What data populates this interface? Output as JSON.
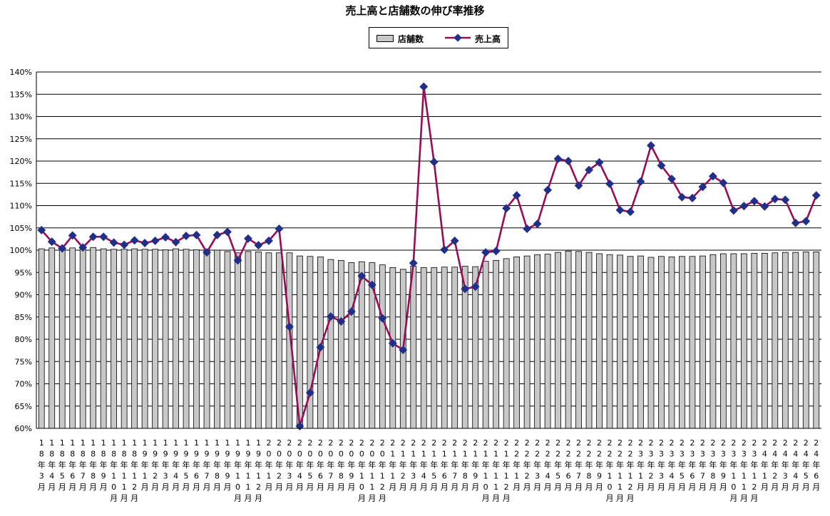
{
  "chart_data": {
    "type": "bar",
    "title": "売上高と店舗数の伸び率推移",
    "legend_position": "top-center",
    "grid": true,
    "ylim": [
      0.6,
      1.4
    ],
    "y_ticks": [
      "60%",
      "65%",
      "70%",
      "75%",
      "80%",
      "85%",
      "90%",
      "95%",
      "100%",
      "105%",
      "110%",
      "115%",
      "120%",
      "125%",
      "130%",
      "135%",
      "140%"
    ],
    "categories": [
      "18年3月",
      "18年4月",
      "18年5月",
      "18年6月",
      "18年7月",
      "18年8月",
      "18年9月",
      "18年10月",
      "18年11月",
      "18年12月",
      "19年1月",
      "19年2月",
      "19年3月",
      "19年4月",
      "19年5月",
      "19年6月",
      "19年7月",
      "19年8月",
      "19年9月",
      "19年10月",
      "19年11月",
      "19年12月",
      "20年1月",
      "20年2月",
      "20年3月",
      "20年4月",
      "20年5月",
      "20年6月",
      "20年7月",
      "20年8月",
      "20年9月",
      "20年10月",
      "20年11月",
      "20年12月",
      "21年1月",
      "21年2月",
      "21年3月",
      "21年4月",
      "21年5月",
      "21年6月",
      "21年7月",
      "21年8月",
      "21年9月",
      "21年10月",
      "21年11月",
      "21年12月",
      "22年1月",
      "22年2月",
      "22年3月",
      "22年4月",
      "22年5月",
      "22年6月",
      "22年7月",
      "22年8月",
      "22年9月",
      "22年10月",
      "22年11月",
      "22年12月",
      "23年1月",
      "23年2月",
      "23年3月",
      "23年4月",
      "23年5月",
      "23年6月",
      "23年7月",
      "23年8月",
      "23年9月",
      "23年10月",
      "23年11月",
      "23年12月",
      "24年1月",
      "24年2月",
      "24年3月",
      "24年4月",
      "24年5月",
      "24年6月"
    ],
    "x_tick_labels": [
      [
        "1",
        "8",
        "年",
        "3",
        "月"
      ],
      [
        "1",
        "8",
        "年",
        "4",
        "月"
      ],
      [
        "1",
        "8",
        "年",
        "5",
        "月"
      ],
      [
        "1",
        "8",
        "年",
        "6",
        "月"
      ],
      [
        "1",
        "8",
        "年",
        "7",
        "月"
      ],
      [
        "1",
        "8",
        "年",
        "8",
        "月"
      ],
      [
        "1",
        "8",
        "年",
        "9",
        "月"
      ],
      [
        "1",
        "8",
        "年",
        "1",
        "0",
        "月"
      ],
      [
        "1",
        "8",
        "年",
        "1",
        "1",
        "月"
      ],
      [
        "1",
        "8",
        "年",
        "1",
        "2",
        "月"
      ],
      [
        "1",
        "9",
        "年",
        "1",
        "月"
      ],
      [
        "1",
        "9",
        "年",
        "2",
        "月"
      ],
      [
        "1",
        "9",
        "年",
        "3",
        "月"
      ],
      [
        "1",
        "9",
        "年",
        "4",
        "月"
      ],
      [
        "1",
        "9",
        "年",
        "5",
        "月"
      ],
      [
        "1",
        "9",
        "年",
        "6",
        "月"
      ],
      [
        "1",
        "9",
        "年",
        "7",
        "月"
      ],
      [
        "1",
        "9",
        "年",
        "8",
        "月"
      ],
      [
        "1",
        "9",
        "年",
        "9",
        "月"
      ],
      [
        "1",
        "9",
        "年",
        "1",
        "0",
        "月"
      ],
      [
        "1",
        "9",
        "年",
        "1",
        "1",
        "月"
      ],
      [
        "1",
        "9",
        "年",
        "1",
        "2",
        "月"
      ],
      [
        "2",
        "0",
        "年",
        "1",
        "月"
      ],
      [
        "2",
        "0",
        "年",
        "2",
        "月"
      ],
      [
        "2",
        "0",
        "年",
        "3",
        "月"
      ],
      [
        "2",
        "0",
        "年",
        "4",
        "月"
      ],
      [
        "2",
        "0",
        "年",
        "5",
        "月"
      ],
      [
        "2",
        "0",
        "年",
        "6",
        "月"
      ],
      [
        "2",
        "0",
        "年",
        "7",
        "月"
      ],
      [
        "2",
        "0",
        "年",
        "8",
        "月"
      ],
      [
        "2",
        "0",
        "年",
        "9",
        "月"
      ],
      [
        "2",
        "0",
        "年",
        "1",
        "0",
        "月"
      ],
      [
        "2",
        "0",
        "年",
        "1",
        "1",
        "月"
      ],
      [
        "2",
        "0",
        "年",
        "1",
        "2",
        "月"
      ],
      [
        "2",
        "1",
        "年",
        "1",
        "月"
      ],
      [
        "2",
        "1",
        "年",
        "2",
        "月"
      ],
      [
        "2",
        "1",
        "年",
        "3",
        "月"
      ],
      [
        "2",
        "1",
        "年",
        "4",
        "月"
      ],
      [
        "2",
        "1",
        "年",
        "5",
        "月"
      ],
      [
        "2",
        "1",
        "年",
        "6",
        "月"
      ],
      [
        "2",
        "1",
        "年",
        "7",
        "月"
      ],
      [
        "2",
        "1",
        "年",
        "8",
        "月"
      ],
      [
        "2",
        "1",
        "年",
        "9",
        "月"
      ],
      [
        "2",
        "1",
        "年",
        "1",
        "0",
        "月"
      ],
      [
        "2",
        "1",
        "年",
        "1",
        "1",
        "月"
      ],
      [
        "2",
        "1",
        "年",
        "1",
        "2",
        "月"
      ],
      [
        "2",
        "2",
        "年",
        "1",
        "月"
      ],
      [
        "2",
        "2",
        "年",
        "2",
        "月"
      ],
      [
        "2",
        "2",
        "年",
        "3",
        "月"
      ],
      [
        "2",
        "2",
        "年",
        "4",
        "月"
      ],
      [
        "2",
        "2",
        "年",
        "5",
        "月"
      ],
      [
        "2",
        "2",
        "年",
        "6",
        "月"
      ],
      [
        "2",
        "2",
        "年",
        "7",
        "月"
      ],
      [
        "2",
        "2",
        "年",
        "8",
        "月"
      ],
      [
        "2",
        "2",
        "年",
        "9",
        "月"
      ],
      [
        "2",
        "2",
        "年",
        "1",
        "0",
        "月"
      ],
      [
        "2",
        "2",
        "年",
        "1",
        "1",
        "月"
      ],
      [
        "2",
        "2",
        "年",
        "1",
        "2",
        "月"
      ],
      [
        "2",
        "3",
        "年",
        "1",
        "月"
      ],
      [
        "2",
        "3",
        "年",
        "2",
        "月"
      ],
      [
        "2",
        "3",
        "年",
        "3",
        "月"
      ],
      [
        "2",
        "3",
        "年",
        "4",
        "月"
      ],
      [
        "2",
        "3",
        "年",
        "5",
        "月"
      ],
      [
        "2",
        "3",
        "年",
        "6",
        "月"
      ],
      [
        "2",
        "3",
        "年",
        "7",
        "月"
      ],
      [
        "2",
        "3",
        "年",
        "8",
        "月"
      ],
      [
        "2",
        "3",
        "年",
        "9",
        "月"
      ],
      [
        "2",
        "3",
        "年",
        "1",
        "0",
        "月"
      ],
      [
        "2",
        "3",
        "年",
        "1",
        "1",
        "月"
      ],
      [
        "2",
        "3",
        "年",
        "1",
        "2",
        "月"
      ],
      [
        "2",
        "4",
        "年",
        "1",
        "月"
      ],
      [
        "2",
        "4",
        "年",
        "2",
        "月"
      ],
      [
        "2",
        "4",
        "年",
        "3",
        "月"
      ],
      [
        "2",
        "4",
        "年",
        "4",
        "月"
      ],
      [
        "2",
        "4",
        "年",
        "5",
        "月"
      ],
      [
        "2",
        "4",
        "年",
        "6",
        "月"
      ]
    ],
    "series": [
      {
        "name": "店舗数",
        "type": "bar",
        "color": "#c8c8c8",
        "values": [
          1.003,
          1.005,
          1.003,
          1.005,
          1.004,
          1.006,
          1.003,
          1.002,
          1.002,
          1.003,
          1.002,
          1.002,
          1.001,
          1.003,
          1.002,
          1.001,
          1.0,
          1.0,
          0.997,
          0.994,
          0.997,
          0.996,
          0.994,
          0.994,
          0.994,
          0.987,
          0.986,
          0.985,
          0.979,
          0.977,
          0.972,
          0.974,
          0.972,
          0.967,
          0.961,
          0.957,
          0.964,
          0.961,
          0.961,
          0.962,
          0.962,
          0.964,
          0.963,
          0.975,
          0.977,
          0.981,
          0.985,
          0.987,
          0.99,
          0.991,
          0.995,
          0.998,
          0.997,
          0.995,
          0.992,
          0.99,
          0.989,
          0.986,
          0.987,
          0.984,
          0.986,
          0.985,
          0.986,
          0.986,
          0.987,
          0.99,
          0.992,
          0.992,
          0.992,
          0.993,
          0.993,
          0.994,
          0.995,
          0.995,
          0.996,
          0.996
        ]
      },
      {
        "name": "売上高",
        "type": "line",
        "color": "#990b57",
        "marker_color": "#1f2f8a",
        "values": [
          1.045,
          1.019,
          1.004,
          1.033,
          1.006,
          1.03,
          1.03,
          1.017,
          1.012,
          1.022,
          1.016,
          1.021,
          1.029,
          1.018,
          1.032,
          1.034,
          0.995,
          1.034,
          1.041,
          0.977,
          1.026,
          1.011,
          1.021,
          1.048,
          0.828,
          0.605,
          0.68,
          0.782,
          0.851,
          0.84,
          0.862,
          0.942,
          0.922,
          0.847,
          0.791,
          0.776,
          0.971,
          1.367,
          1.198,
          1.001,
          1.021,
          0.913,
          0.918,
          0.995,
          0.998,
          1.094,
          1.123,
          1.048,
          1.059,
          1.135,
          1.205,
          1.2,
          1.145,
          1.18,
          1.197,
          1.149,
          1.09,
          1.086,
          1.154,
          1.235,
          1.19,
          1.16,
          1.119,
          1.117,
          1.142,
          1.166,
          1.151,
          1.089,
          1.099,
          1.11,
          1.098,
          1.115,
          1.113,
          1.061,
          1.065,
          1.123
        ]
      }
    ]
  },
  "legend": {
    "bar_label": "店舗数",
    "line_label": "売上高"
  }
}
